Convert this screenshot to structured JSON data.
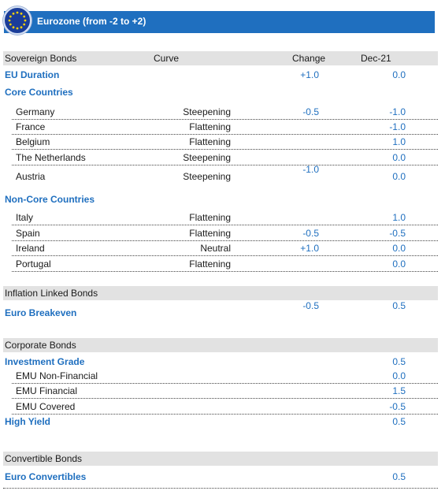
{
  "header": {
    "title": "Eurozone (from -2 to +2)"
  },
  "columns": {
    "bonds": "Sovereign Bonds",
    "curve": "Curve",
    "change": "Change",
    "dec": "Dec-21"
  },
  "eu_duration": {
    "label": "EU Duration",
    "change": "+1.0",
    "dec": "0.0"
  },
  "core": {
    "label": "Core Countries",
    "rows": [
      {
        "name": "Germany",
        "curve": "Steepening",
        "change": "-0.5",
        "dec": "-1.0"
      },
      {
        "name": "France",
        "curve": "Flattening",
        "change": "",
        "dec": "-1.0"
      },
      {
        "name": "Belgium",
        "curve": "Flattening",
        "change": "",
        "dec": "1.0"
      },
      {
        "name": "The Netherlands",
        "curve": "Steepening",
        "change": "",
        "dec": "0.0"
      },
      {
        "name": "Austria",
        "curve": "Steepening",
        "change": "-1.0",
        "dec": "0.0"
      }
    ]
  },
  "noncore": {
    "label": "Non-Core  Countries",
    "rows": [
      {
        "name": "Italy",
        "curve": "Flattening",
        "change": "",
        "dec": "1.0"
      },
      {
        "name": "Spain",
        "curve": "Flattening",
        "change": "-0.5",
        "dec": "-0.5"
      },
      {
        "name": "Ireland",
        "curve": "Neutral",
        "change": "+1.0",
        "dec": "0.0"
      },
      {
        "name": "Portugal",
        "curve": "Flattening",
        "change": "",
        "dec": "0.0"
      }
    ]
  },
  "inflation": {
    "header": "Inflation Linked Bonds",
    "label": "Euro Breakeven",
    "change": "-0.5",
    "dec": "0.5"
  },
  "corporate": {
    "header": "Corporate Bonds",
    "ig_label": "Investment Grade",
    "ig_dec": "0.5",
    "rows": [
      {
        "name": "EMU Non-Financial",
        "dec": "0.0"
      },
      {
        "name": "EMU Financial",
        "dec": "1.5"
      },
      {
        "name": "EMU Covered",
        "dec": "-0.5"
      }
    ],
    "hy_label": "High Yield",
    "hy_dec": "0.5"
  },
  "convertible": {
    "header": "Convertible Bonds",
    "label": "Euro Convertibles",
    "dec": "0.5"
  },
  "colors": {
    "accent": "#1f6fbf",
    "header_bar": "#1f6fbf",
    "section_bg": "#e2e2e2"
  }
}
